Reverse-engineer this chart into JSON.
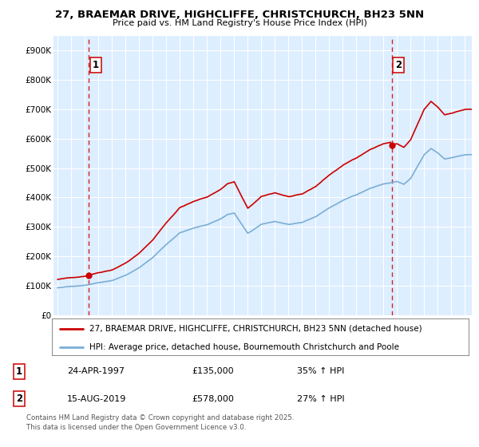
{
  "title_line1": "27, BRAEMAR DRIVE, HIGHCLIFFE, CHRISTCHURCH, BH23 5NN",
  "title_line2": "Price paid vs. HM Land Registry's House Price Index (HPI)",
  "legend_line1": "27, BRAEMAR DRIVE, HIGHCLIFFE, CHRISTCHURCH, BH23 5NN (detached house)",
  "legend_line2": "HPI: Average price, detached house, Bournemouth Christchurch and Poole",
  "footer": "Contains HM Land Registry data © Crown copyright and database right 2025.\nThis data is licensed under the Open Government Licence v3.0.",
  "transaction1_date": "24-APR-1997",
  "transaction1_price": "£135,000",
  "transaction1_hpi": "35% ↑ HPI",
  "transaction2_date": "15-AUG-2019",
  "transaction2_price": "£578,000",
  "transaction2_hpi": "27% ↑ HPI",
  "sale1_year": 1997.29,
  "sale1_price": 135000,
  "sale2_year": 2019.62,
  "sale2_price": 578000,
  "red_color": "#cc0000",
  "blue_color": "#7aaed6",
  "background_color": "#ddeeff",
  "fig_bg": "#f0f0f0",
  "ylim_max": 950000,
  "xlim_min": 1994.7,
  "xlim_max": 2025.5
}
